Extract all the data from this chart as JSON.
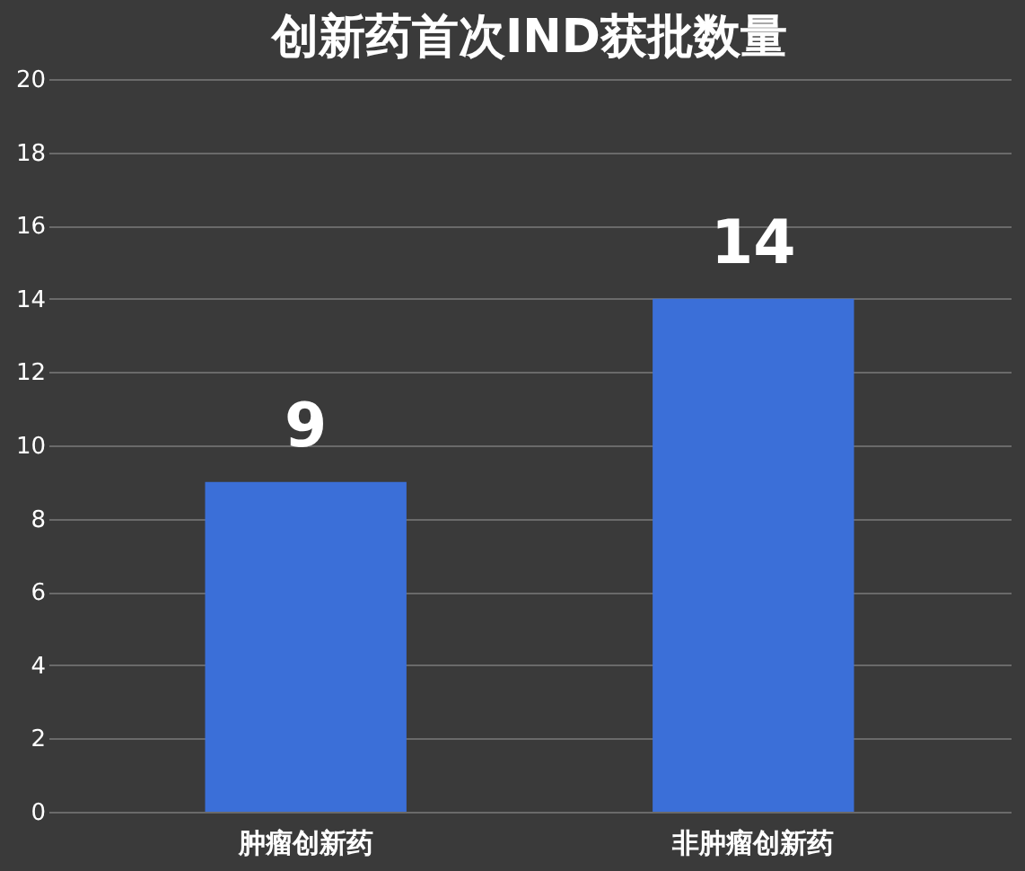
{
  "chart_data": {
    "type": "bar",
    "title": "创新药首次IND获批数量",
    "categories": [
      "肿瘤创新药",
      "非肿瘤创新药"
    ],
    "values": [
      9,
      14
    ],
    "color": "#3b6fd8",
    "ylim": [
      0,
      20
    ],
    "yticks": [
      0,
      2,
      4,
      6,
      8,
      10,
      12,
      14,
      16,
      18,
      20
    ],
    "grid": "y",
    "data_labels": true
  }
}
